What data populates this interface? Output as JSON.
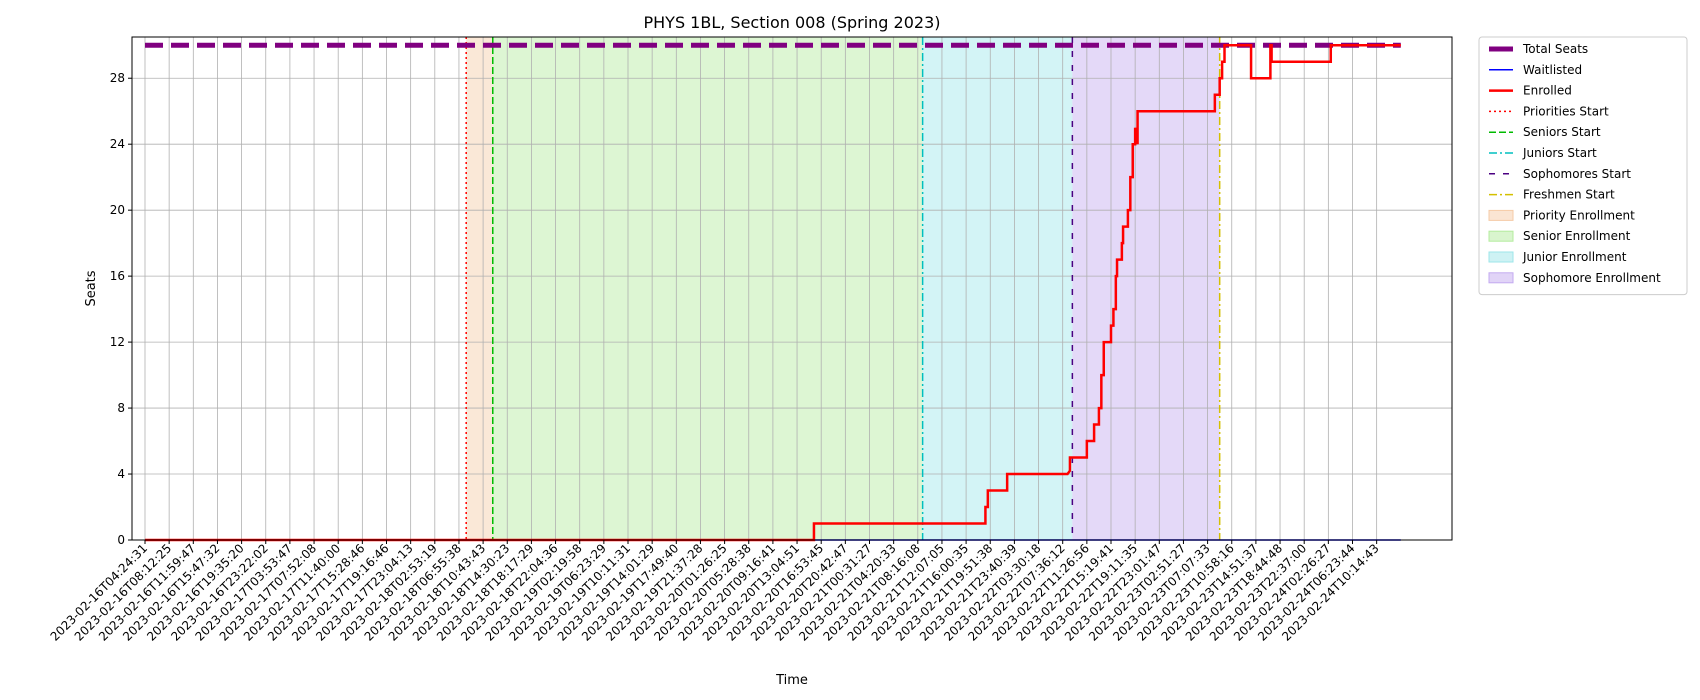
{
  "chart_data": {
    "type": "line",
    "title": "PHYS 1BL, Section 008 (Spring 2023)",
    "xlabel": "Time",
    "ylabel": "Seats",
    "ylim": [
      0,
      30.5
    ],
    "yticks": [
      0,
      4,
      8,
      12,
      16,
      20,
      24,
      28
    ],
    "grid": true,
    "legend_position": "outside-top-right",
    "x_ticks": [
      "2023-02-16T04:24:31",
      "2023-02-16T08:12:25",
      "2023-02-16T11:59:47",
      "2023-02-16T15:47:32",
      "2023-02-16T19:35:20",
      "2023-02-16T23:22:02",
      "2023-02-17T03:53:47",
      "2023-02-17T07:52:08",
      "2023-02-17T11:40:00",
      "2023-02-17T15:28:46",
      "2023-02-17T19:16:46",
      "2023-02-17T23:04:13",
      "2023-02-18T02:53:19",
      "2023-02-18T06:55:38",
      "2023-02-18T10:43:43",
      "2023-02-18T14:30:23",
      "2023-02-18T18:17:29",
      "2023-02-18T22:04:36",
      "2023-02-19T02:19:58",
      "2023-02-19T06:23:29",
      "2023-02-19T10:11:31",
      "2023-02-19T14:01:29",
      "2023-02-19T17:49:40",
      "2023-02-19T21:37:28",
      "2023-02-20T01:26:25",
      "2023-02-20T05:28:38",
      "2023-02-20T09:16:41",
      "2023-02-20T13:04:51",
      "2023-02-20T16:53:45",
      "2023-02-20T20:42:47",
      "2023-02-21T00:31:27",
      "2023-02-21T04:20:33",
      "2023-02-21T08:16:08",
      "2023-02-21T12:07:05",
      "2023-02-21T16:00:35",
      "2023-02-21T19:51:38",
      "2023-02-21T23:40:39",
      "2023-02-22T03:30:18",
      "2023-02-22T07:36:12",
      "2023-02-22T11:26:56",
      "2023-02-22T15:19:41",
      "2023-02-22T19:11:35",
      "2023-02-22T23:01:47",
      "2023-02-23T02:51:27",
      "2023-02-23T07:07:33",
      "2023-02-23T10:58:16",
      "2023-02-23T14:51:37",
      "2023-02-23T18:44:48",
      "2023-02-23T22:37:00",
      "2023-02-24T02:26:27",
      "2023-02-24T06:23:44",
      "2023-02-24T10:14:43"
    ],
    "series": [
      {
        "name": "Total Seats",
        "color": "#800080",
        "style": "dashed-thick",
        "points": [
          [
            0,
            30
          ],
          [
            52,
            30
          ]
        ]
      },
      {
        "name": "Waitlisted",
        "color": "#0000ff",
        "style": "solid",
        "points": [
          [
            0,
            0
          ],
          [
            52,
            0
          ]
        ]
      },
      {
        "name": "Enrolled",
        "color": "#ff0000",
        "style": "solid-thick",
        "points": [
          [
            0,
            0
          ],
          [
            27.7,
            0
          ],
          [
            27.7,
            1
          ],
          [
            34.8,
            1
          ],
          [
            34.8,
            2
          ],
          [
            34.9,
            2
          ],
          [
            34.9,
            3
          ],
          [
            35.7,
            3
          ],
          [
            35.7,
            4
          ],
          [
            38.2,
            4
          ],
          [
            38.2,
            4
          ],
          [
            38.3,
            4.2
          ],
          [
            38.3,
            5
          ],
          [
            39.0,
            5
          ],
          [
            39.0,
            6
          ],
          [
            39.3,
            6
          ],
          [
            39.3,
            7
          ],
          [
            39.5,
            7
          ],
          [
            39.5,
            8
          ],
          [
            39.6,
            8
          ],
          [
            39.6,
            10
          ],
          [
            39.7,
            10
          ],
          [
            39.7,
            12
          ],
          [
            40.0,
            12
          ],
          [
            40.0,
            13
          ],
          [
            40.1,
            13
          ],
          [
            40.1,
            14
          ],
          [
            40.2,
            14
          ],
          [
            40.2,
            16
          ],
          [
            40.25,
            16
          ],
          [
            40.25,
            17
          ],
          [
            40.45,
            17
          ],
          [
            40.45,
            18
          ],
          [
            40.5,
            18
          ],
          [
            40.5,
            19
          ],
          [
            40.7,
            19
          ],
          [
            40.7,
            20
          ],
          [
            40.8,
            20
          ],
          [
            40.8,
            22
          ],
          [
            40.9,
            22
          ],
          [
            40.9,
            24
          ],
          [
            41.0,
            24
          ],
          [
            41.0,
            25
          ],
          [
            41.1,
            24
          ],
          [
            41.1,
            26
          ],
          [
            44.3,
            26
          ],
          [
            44.3,
            27
          ],
          [
            44.5,
            27
          ],
          [
            44.5,
            28
          ],
          [
            44.6,
            28
          ],
          [
            44.6,
            29
          ],
          [
            44.7,
            29
          ],
          [
            44.7,
            30
          ],
          [
            45.8,
            30
          ],
          [
            45.8,
            28
          ],
          [
            46.6,
            28
          ],
          [
            46.6,
            30
          ],
          [
            46.65,
            30
          ],
          [
            46.65,
            29
          ],
          [
            49.1,
            29
          ],
          [
            49.1,
            30
          ],
          [
            52,
            30
          ]
        ]
      }
    ],
    "markers": [
      {
        "name": "Priorities Start",
        "x": 13.3,
        "color": "#ff0000",
        "style": "dotted"
      },
      {
        "name": "Seniors Start",
        "x": 14.4,
        "color": "#00bb00",
        "style": "dashed"
      },
      {
        "name": "Juniors Start",
        "x": 32.2,
        "color": "#00bfbf",
        "style": "dashdot"
      },
      {
        "name": "Sophomores Start",
        "x": 38.4,
        "color": "#4b0082",
        "style": "loosedash"
      },
      {
        "name": "Freshmen Start",
        "x": 44.5,
        "color": "#d4c000",
        "style": "dashdot"
      }
    ],
    "regions": [
      {
        "name": "Priority Enrollment",
        "x0": 13.3,
        "x1": 14.4,
        "color": "#f5cba7"
      },
      {
        "name": "Senior Enrollment",
        "x0": 14.4,
        "x1": 32.2,
        "color": "#b4ec9e"
      },
      {
        "name": "Junior Enrollment",
        "x0": 32.2,
        "x1": 38.4,
        "color": "#9de6ea"
      },
      {
        "name": "Sophomore Enrollment",
        "x0": 38.4,
        "x1": 44.5,
        "color": "#c3aaf0"
      }
    ]
  }
}
